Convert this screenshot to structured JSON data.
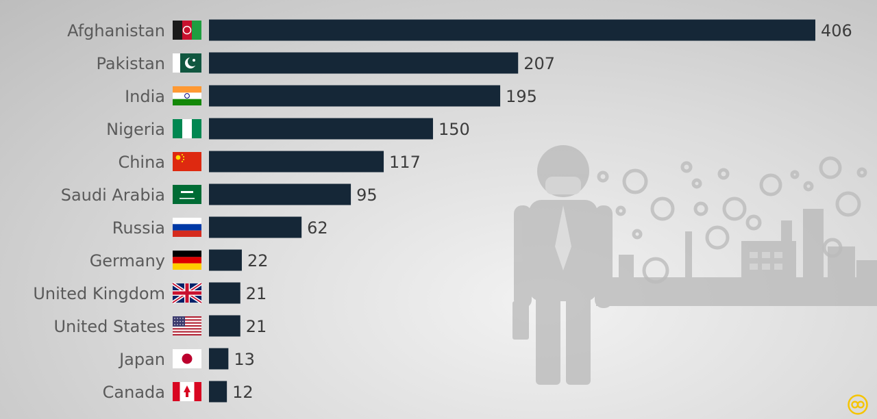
{
  "chart_data": {
    "type": "bar",
    "orientation": "horizontal",
    "categories": [
      "Afghanistan",
      "Pakistan",
      "India",
      "Nigeria",
      "China",
      "Saudi Arabia",
      "Russia",
      "Germany",
      "United Kingdom",
      "United States",
      "Japan",
      "Canada"
    ],
    "values": [
      406,
      207,
      195,
      150,
      117,
      95,
      62,
      22,
      21,
      21,
      13,
      12
    ],
    "title": "",
    "xlabel": "",
    "ylabel": "",
    "xlim": [
      0,
      406
    ],
    "grid": false,
    "legend": "none",
    "data_labels": true,
    "category_icons": [
      "afghanistan-flag-icon",
      "pakistan-flag-icon",
      "india-flag-icon",
      "nigeria-flag-icon",
      "china-flag-icon",
      "saudi-arabia-flag-icon",
      "russia-flag-icon",
      "germany-flag-icon",
      "united-kingdom-flag-icon",
      "united-states-flag-icon",
      "japan-flag-icon",
      "canada-flag-icon"
    ],
    "bar_color": "#152737"
  },
  "decor": {
    "background_illustration": "person-with-face-mask-and-factory-pollution-icon",
    "corner_logo": "brand-logo-icon",
    "logo_color": "#f5c400"
  }
}
